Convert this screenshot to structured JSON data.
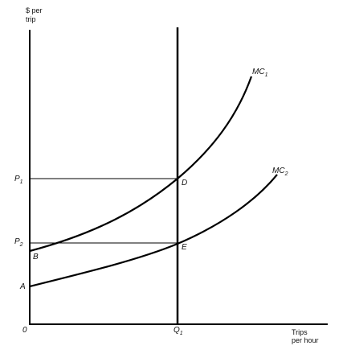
{
  "diagram": {
    "y_axis_label": [
      "$ per",
      "trip"
    ],
    "x_axis_label": [
      "Trips",
      "per hour"
    ],
    "origin_label": "0",
    "curves": [
      {
        "name": "MC",
        "subscript": "1"
      },
      {
        "name": "MC",
        "subscript": "2"
      }
    ],
    "price_labels": [
      {
        "name": "P",
        "subscript": "1"
      },
      {
        "name": "P",
        "subscript": "2"
      }
    ],
    "quantity_label": {
      "name": "Q",
      "subscript": "1"
    },
    "points": [
      "D",
      "E",
      "B",
      "A"
    ],
    "colors": {
      "line": "#000000",
      "text": "#111111",
      "background": "#ffffff"
    }
  }
}
